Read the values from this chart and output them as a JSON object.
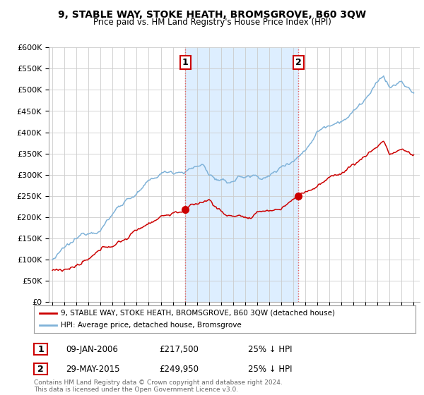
{
  "title": "9, STABLE WAY, STOKE HEATH, BROMSGROVE, B60 3QW",
  "subtitle": "Price paid vs. HM Land Registry's House Price Index (HPI)",
  "ylim": [
    0,
    600000
  ],
  "yticks": [
    0,
    50000,
    100000,
    150000,
    200000,
    250000,
    300000,
    350000,
    400000,
    450000,
    500000,
    550000,
    600000
  ],
  "ytick_labels": [
    "£0",
    "£50K",
    "£100K",
    "£150K",
    "£200K",
    "£250K",
    "£300K",
    "£350K",
    "£400K",
    "£450K",
    "£500K",
    "£550K",
    "£600K"
  ],
  "transaction1_date": "09-JAN-2006",
  "transaction1_price": 217500,
  "transaction1_pct": "25% ↓ HPI",
  "transaction1_year": 2006.03,
  "transaction2_date": "29-MAY-2015",
  "transaction2_price": 249950,
  "transaction2_pct": "25% ↓ HPI",
  "transaction2_year": 2015.41,
  "legend_red": "9, STABLE WAY, STOKE HEATH, BROMSGROVE, B60 3QW (detached house)",
  "legend_blue": "HPI: Average price, detached house, Bromsgrove",
  "footer": "Contains HM Land Registry data © Crown copyright and database right 2024.\nThis data is licensed under the Open Government Licence v3.0.",
  "red_color": "#cc0000",
  "blue_color": "#7fb2d8",
  "vline_color": "#e86060",
  "background_color": "#ffffff",
  "grid_color": "#cccccc",
  "shade_color": "#ddeeff"
}
